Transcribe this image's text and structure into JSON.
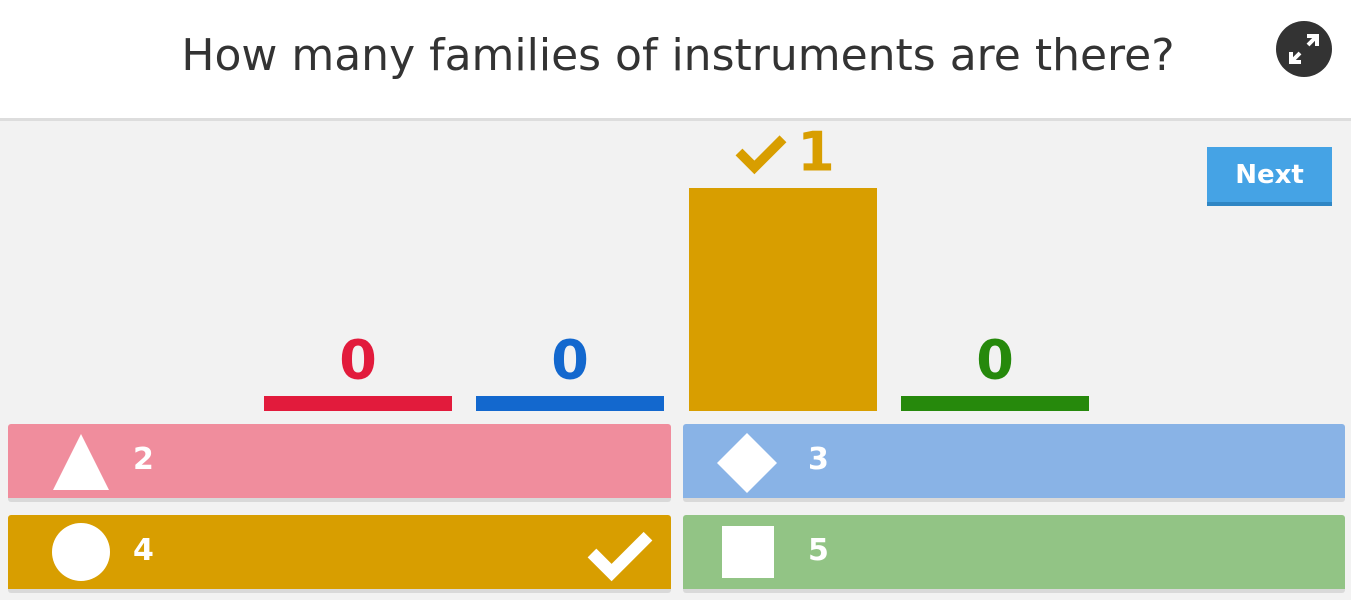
{
  "question": "How many families of instruments are there?",
  "next_button": "Next",
  "answers": [
    {
      "label": "2",
      "count": 0,
      "correct": false,
      "color": "#e21b3c",
      "shape": "triangle"
    },
    {
      "label": "3",
      "count": 0,
      "correct": false,
      "color": "#1368ce",
      "shape": "diamond"
    },
    {
      "label": "4",
      "count": 1,
      "correct": true,
      "color": "#d89e00",
      "shape": "circle"
    },
    {
      "label": "5",
      "count": 0,
      "correct": false,
      "color": "#26890c",
      "shape": "square"
    }
  ]
}
